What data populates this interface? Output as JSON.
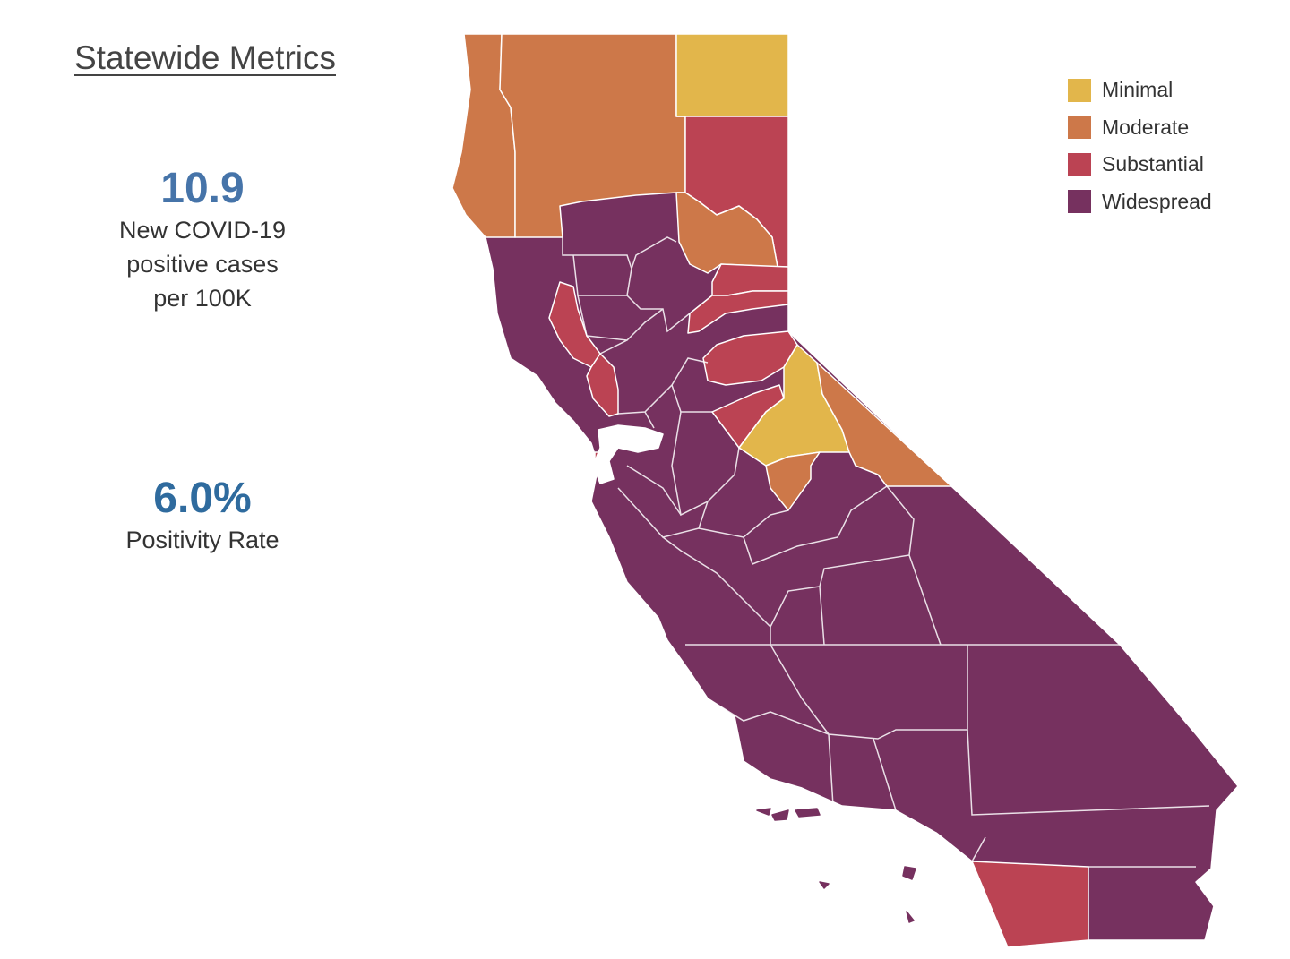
{
  "header": {
    "title": "Statewide Metrics"
  },
  "metrics": {
    "cases": {
      "value": "10.9",
      "label_lines": [
        "New COVID-19",
        "positive cases",
        "per 100K"
      ]
    },
    "positivity": {
      "value": "6.0%",
      "label": "Positivity Rate"
    }
  },
  "legend": {
    "items": [
      {
        "label": "Minimal",
        "color": "#e2b64b"
      },
      {
        "label": "Moderate",
        "color": "#cd7849"
      },
      {
        "label": "Substantial",
        "color": "#bb4353"
      },
      {
        "label": "Widespread",
        "color": "#76315f"
      }
    ]
  },
  "map": {
    "regions": [
      {
        "name": "north-coast",
        "tier": "Moderate"
      },
      {
        "name": "north-mountain",
        "tier": "Moderate"
      },
      {
        "name": "northeast-corner",
        "tier": "Minimal"
      },
      {
        "name": "northeast-plateau",
        "tier": "Substantial"
      },
      {
        "name": "northern-sierra-plumas",
        "tier": "Moderate"
      },
      {
        "name": "sierra-strip-1",
        "tier": "Substantial"
      },
      {
        "name": "sierra-strip-2",
        "tier": "Substantial"
      },
      {
        "name": "el-dorado",
        "tier": "Substantial"
      },
      {
        "name": "amador-calaveras",
        "tier": "Substantial"
      },
      {
        "name": "alpine",
        "tier": "Minimal"
      },
      {
        "name": "mono",
        "tier": "Moderate"
      },
      {
        "name": "mariposa",
        "tier": "Moderate"
      },
      {
        "name": "lake",
        "tier": "Substantial"
      },
      {
        "name": "napa",
        "tier": "Substantial"
      },
      {
        "name": "marin-point",
        "tier": "Substantial"
      },
      {
        "name": "san-diego",
        "tier": "Substantial"
      },
      {
        "name": "statewide-remainder",
        "tier": "Widespread"
      }
    ]
  }
}
